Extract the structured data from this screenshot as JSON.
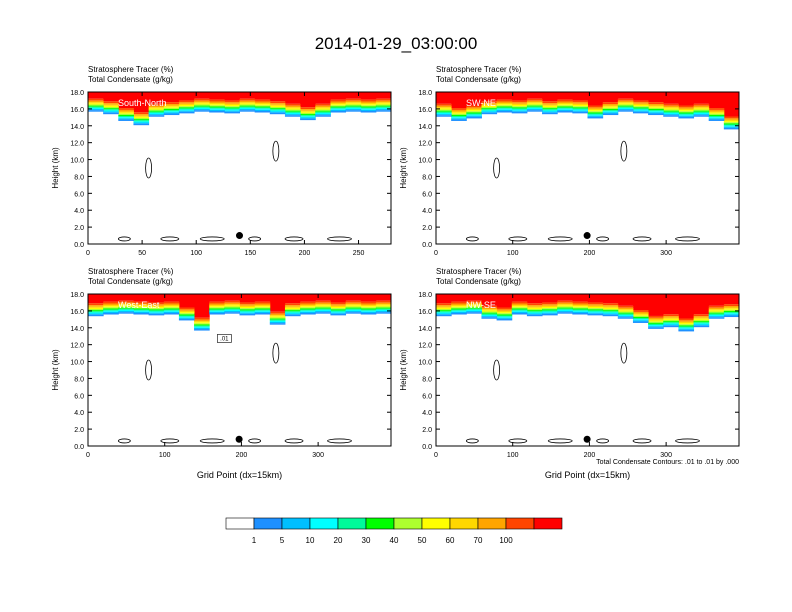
{
  "title": "2014-01-29_03:00:00",
  "colors": [
    "#ffffff",
    "#1e90ff",
    "#00bfff",
    "#00ffff",
    "#00fa9a",
    "#00ff00",
    "#adff2f",
    "#ffff00",
    "#ffd700",
    "#ffa500",
    "#ff4500",
    "#ff0000"
  ],
  "colorbar": {
    "labels": [
      "1",
      "5",
      "10",
      "20",
      "30",
      "40",
      "50",
      "60",
      "70",
      "100"
    ]
  },
  "contour_note": "Total Condensate Contours: .01 to .01 by .000",
  "chart_data": [
    {
      "type": "heatmap",
      "subtitle1": "Stratosphere Tracer   (%)",
      "subtitle2": "Total Condensate   (g/kg)",
      "cross_section_label": "South-North",
      "ylabel": "Height (km)",
      "xlabel": "",
      "ylim": [
        0,
        18
      ],
      "xlim": [
        0,
        280
      ],
      "yticks": [
        "0.0",
        "2.0",
        "4.0",
        "6.0",
        "8.0",
        "10.0",
        "12.0",
        "14.0",
        "16.0",
        "18.0"
      ],
      "xticks": [
        0,
        50,
        100,
        150,
        200,
        250
      ],
      "tracer_top_km": 16.0,
      "tropopause_km_samples": [
        15.6,
        15.3,
        14.5,
        14.0,
        15.0,
        15.2,
        15.4,
        15.6,
        15.5,
        15.4,
        15.6,
        15.5,
        15.3,
        15.0,
        14.6,
        15.0,
        15.5,
        15.6,
        15.5,
        15.6
      ],
      "marker": {
        "x": 140,
        "y": 1.0
      },
      "contour_label": ""
    },
    {
      "type": "heatmap",
      "subtitle1": "Stratosphere Tracer   (%)",
      "subtitle2": "Total Condensate   (g/kg)",
      "cross_section_label": "SW-NE",
      "ylabel": "Height (km)",
      "xlabel": "",
      "ylim": [
        0,
        18
      ],
      "xlim": [
        0,
        395
      ],
      "yticks": [
        "0.0",
        "2.0",
        "4.0",
        "6.0",
        "8.0",
        "10.0",
        "12.0",
        "14.0",
        "16.0",
        "18.0"
      ],
      "xticks": [
        0,
        100,
        200,
        300
      ],
      "tracer_top_km": 16.0,
      "tropopause_km_samples": [
        15.0,
        14.5,
        14.8,
        15.3,
        15.5,
        15.4,
        15.6,
        15.3,
        15.5,
        15.4,
        14.8,
        15.2,
        15.6,
        15.4,
        15.2,
        15.0,
        14.8,
        15.0,
        14.5,
        13.5
      ],
      "marker": {
        "x": 197,
        "y": 1.0
      },
      "contour_label": ""
    },
    {
      "type": "heatmap",
      "subtitle1": "Stratosphere Tracer   (%)",
      "subtitle2": "Total Condensate   (g/kg)",
      "cross_section_label": "West-East",
      "ylabel": "Height (km)",
      "xlabel": "Grid Point (dx=15km)",
      "ylim": [
        0,
        18
      ],
      "xlim": [
        0,
        395
      ],
      "yticks": [
        "0.0",
        "2.0",
        "4.0",
        "6.0",
        "8.0",
        "10.0",
        "12.0",
        "14.0",
        "16.0",
        "18.0"
      ],
      "xticks": [
        0,
        100,
        200,
        300
      ],
      "tracer_top_km": 16.0,
      "tropopause_km_samples": [
        15.3,
        15.5,
        15.6,
        15.5,
        15.4,
        15.5,
        14.8,
        13.6,
        15.5,
        15.6,
        15.4,
        15.5,
        14.3,
        15.3,
        15.5,
        15.6,
        15.4,
        15.6,
        15.5,
        15.6
      ],
      "marker": {
        "x": 197,
        "y": 0.8
      },
      "contour_label": ".01"
    },
    {
      "type": "heatmap",
      "subtitle1": "Stratosphere Tracer   (%)",
      "subtitle2": "Total Condensate   (g/kg)",
      "cross_section_label": "NW-SE",
      "ylabel": "Height (km)",
      "xlabel": "Grid Point (dx=15km)",
      "ylim": [
        0,
        18
      ],
      "xlim": [
        0,
        395
      ],
      "yticks": [
        "0.0",
        "2.0",
        "4.0",
        "6.0",
        "8.0",
        "10.0",
        "12.0",
        "14.0",
        "16.0",
        "18.0"
      ],
      "xticks": [
        0,
        100,
        200,
        300
      ],
      "tracer_top_km": 16.0,
      "tropopause_km_samples": [
        15.3,
        15.5,
        15.6,
        15.0,
        14.8,
        15.5,
        15.3,
        15.4,
        15.6,
        15.5,
        15.4,
        15.3,
        15.0,
        14.5,
        13.8,
        14.0,
        13.5,
        14.0,
        15.0,
        15.2
      ],
      "marker": {
        "x": 197,
        "y": 0.8
      },
      "contour_label": ""
    }
  ]
}
